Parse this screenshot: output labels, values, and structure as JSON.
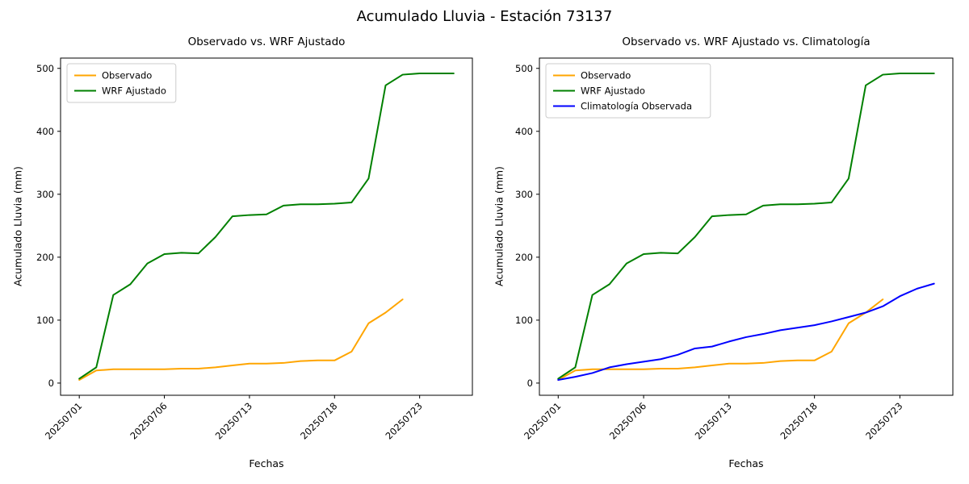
{
  "figure": {
    "title": "Acumulado Lluvia - Estación 73137",
    "background": "#ffffff"
  },
  "chart_data": [
    {
      "type": "line",
      "title": "Observado vs. WRF Ajustado",
      "xlabel": "Fechas",
      "ylabel": "Acumulado Lluvia (mm)",
      "yticks": [
        0,
        100,
        200,
        300,
        400,
        500
      ],
      "ylim": [
        0,
        500
      ],
      "grid": false,
      "legend_position": "upper left",
      "xticks": {
        "positions": [
          0,
          5,
          10,
          15,
          20
        ],
        "labels": [
          "20250701",
          "20250706",
          "20250713",
          "20250718",
          "20250723"
        ],
        "rotation": 45
      },
      "series": [
        {
          "name": "Observado",
          "color": "#FFA500",
          "values": [
            5,
            20,
            22,
            22,
            22,
            22,
            23,
            23,
            25,
            28,
            31,
            31,
            32,
            35,
            36,
            36,
            50,
            95,
            112,
            133
          ]
        },
        {
          "name": "WRF Ajustado",
          "color": "#008000",
          "values": [
            7,
            25,
            140,
            157,
            190,
            205,
            207,
            206,
            232,
            265,
            267,
            268,
            282,
            284,
            284,
            285,
            287,
            325,
            473,
            490,
            492,
            492,
            492
          ]
        }
      ]
    },
    {
      "type": "line",
      "title": "Observado vs. WRF Ajustado vs. Climatología",
      "xlabel": "Fechas",
      "ylabel": "Acumulado Lluvia (mm)",
      "yticks": [
        0,
        100,
        200,
        300,
        400,
        500
      ],
      "ylim": [
        0,
        500
      ],
      "grid": false,
      "legend_position": "upper left",
      "xticks": {
        "positions": [
          0,
          5,
          10,
          15,
          20
        ],
        "labels": [
          "20250701",
          "20250706",
          "20250713",
          "20250718",
          "20250723"
        ],
        "rotation": 45
      },
      "series": [
        {
          "name": "Observado",
          "color": "#FFA500",
          "values": [
            5,
            20,
            22,
            22,
            22,
            22,
            23,
            23,
            25,
            28,
            31,
            31,
            32,
            35,
            36,
            36,
            50,
            95,
            112,
            133
          ]
        },
        {
          "name": "WRF Ajustado",
          "color": "#008000",
          "values": [
            7,
            25,
            140,
            157,
            190,
            205,
            207,
            206,
            232,
            265,
            267,
            268,
            282,
            284,
            284,
            285,
            287,
            325,
            473,
            490,
            492,
            492,
            492
          ]
        },
        {
          "name": "Climatología Observada",
          "color": "#0000FF",
          "values": [
            5,
            10,
            16,
            25,
            30,
            34,
            38,
            45,
            55,
            58,
            66,
            73,
            78,
            84,
            88,
            92,
            98,
            105,
            112,
            122,
            138,
            150,
            158
          ]
        }
      ]
    }
  ]
}
